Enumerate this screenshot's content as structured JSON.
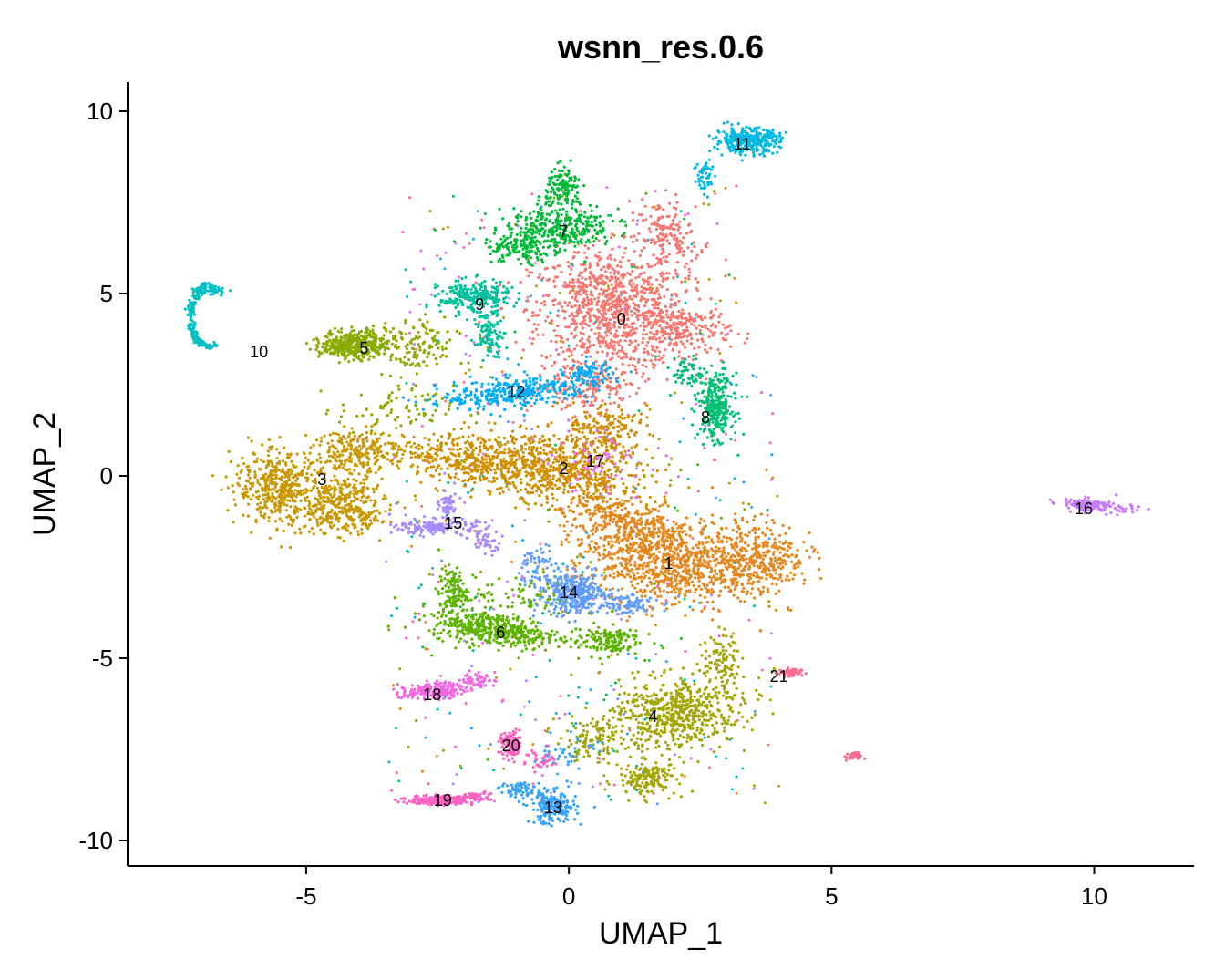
{
  "chart_data": {
    "type": "scatter",
    "title": "wsnn_res.0.6",
    "xlabel": "UMAP_1",
    "ylabel": "UMAP_2",
    "xlim": [
      -8.4,
      11.9
    ],
    "ylim": [
      -10.7,
      10.8
    ],
    "xticks": [
      -5,
      0,
      5,
      10
    ],
    "yticks": [
      -10,
      -5,
      0,
      5,
      10
    ],
    "xtick_labels": [
      "-5",
      "0",
      "5",
      "10"
    ],
    "ytick_labels": [
      "-10",
      "-5",
      "0",
      "5",
      "10"
    ],
    "grid": false,
    "legend": "none",
    "clusters": [
      {
        "name": "0",
        "color": "#F8766D",
        "label_pos": [
          1.0,
          4.3
        ],
        "blobs": [
          [
            0.8,
            4.6,
            1.3,
            1.5,
            0.1,
            900
          ],
          [
            1.9,
            6.6,
            0.5,
            0.9,
            0.3,
            150
          ],
          [
            2.2,
            4.0,
            0.8,
            0.6,
            0,
            200
          ],
          [
            0.4,
            2.5,
            0.9,
            0.7,
            0.2,
            200
          ]
        ]
      },
      {
        "name": "1",
        "color": "#E7861B",
        "label_pos": [
          1.9,
          -2.4
        ],
        "blobs": [
          [
            1.8,
            -2.3,
            1.5,
            1.1,
            -0.3,
            900
          ],
          [
            3.6,
            -2.2,
            0.8,
            0.9,
            0.2,
            350
          ],
          [
            1.0,
            -1.3,
            1.0,
            0.6,
            -0.5,
            250
          ]
        ]
      },
      {
        "name": "2",
        "color": "#D08F00",
        "label_pos": [
          -0.1,
          0.2
        ],
        "blobs": [
          [
            -0.3,
            0.2,
            1.6,
            0.8,
            -0.3,
            700
          ],
          [
            -1.8,
            0.4,
            1.2,
            0.6,
            -0.2,
            300
          ],
          [
            0.6,
            1.2,
            0.8,
            0.6,
            0.3,
            200
          ]
        ]
      },
      {
        "name": "3",
        "color": "#C99800",
        "label_pos": [
          -4.7,
          -0.1
        ],
        "blobs": [
          [
            -5.5,
            -0.3,
            0.75,
            0.9,
            0.1,
            450
          ],
          [
            -4.3,
            -0.7,
            0.7,
            0.8,
            0,
            300
          ],
          [
            -3.9,
            0.7,
            0.9,
            0.5,
            0,
            250
          ],
          [
            -4.2,
            -1.2,
            1.0,
            0.3,
            0,
            100
          ]
        ]
      },
      {
        "name": "4",
        "color": "#A3A500",
        "label_pos": [
          1.6,
          -6.6
        ],
        "blobs": [
          [
            2.0,
            -6.5,
            1.2,
            0.9,
            0.3,
            600
          ],
          [
            1.5,
            -8.3,
            0.5,
            0.4,
            0,
            150
          ],
          [
            0.4,
            -7.3,
            0.6,
            0.5,
            0,
            100
          ],
          [
            2.9,
            -5.0,
            0.3,
            0.6,
            0,
            80
          ]
        ]
      },
      {
        "name": "5",
        "color": "#8AAB00",
        "label_pos": [
          -3.9,
          3.5
        ],
        "blobs": [
          [
            -4.1,
            3.6,
            0.55,
            0.35,
            0,
            400
          ],
          [
            -3.0,
            3.5,
            0.8,
            0.7,
            0,
            150
          ],
          [
            -3.3,
            1.8,
            1.0,
            0.6,
            0,
            80
          ]
        ]
      },
      {
        "name": "6",
        "color": "#5EB300",
        "label_pos": [
          -1.3,
          -4.3
        ],
        "blobs": [
          [
            -1.4,
            -4.2,
            1.1,
            0.4,
            -0.2,
            450
          ],
          [
            -2.2,
            -3.2,
            0.25,
            0.6,
            0,
            120
          ],
          [
            0.7,
            -4.5,
            0.6,
            0.4,
            0,
            150
          ],
          [
            -0.8,
            -3.3,
            0.9,
            0.5,
            0,
            80
          ]
        ]
      },
      {
        "name": "7",
        "color": "#00BA38",
        "label_pos": [
          -0.1,
          6.7
        ],
        "blobs": [
          [
            -0.2,
            6.8,
            0.9,
            0.6,
            0.2,
            350
          ],
          [
            -0.1,
            7.9,
            0.3,
            0.5,
            0,
            120
          ],
          [
            -1.0,
            6.2,
            0.6,
            0.4,
            0,
            120
          ]
        ]
      },
      {
        "name": "8",
        "color": "#00BF74",
        "label_pos": [
          2.6,
          1.6
        ],
        "blobs": [
          [
            2.8,
            1.9,
            0.3,
            0.8,
            0,
            300
          ],
          [
            2.3,
            2.8,
            0.3,
            0.4,
            0,
            60
          ]
        ]
      },
      {
        "name": "9",
        "color": "#00C19C",
        "label_pos": [
          -1.7,
          4.7
        ],
        "blobs": [
          [
            -1.8,
            4.9,
            0.6,
            0.4,
            0,
            250
          ],
          [
            -1.5,
            3.9,
            0.25,
            0.5,
            0,
            100
          ]
        ]
      },
      {
        "name": "10",
        "color": "#00BFC4",
        "label_pos": [
          -5.9,
          3.4
        ],
        "arc": [
          -7.2,
          4.4,
          0.3,
          0.6,
          0,
          200
        ]
      },
      {
        "name": "11",
        "color": "#00B9E3",
        "label_pos": [
          3.3,
          9.1
        ],
        "blobs": [
          [
            3.4,
            9.2,
            0.55,
            0.3,
            0,
            350
          ],
          [
            2.6,
            8.2,
            0.2,
            0.5,
            0,
            50
          ]
        ]
      },
      {
        "name": "12",
        "color": "#00ADFA",
        "label_pos": [
          -1.0,
          2.3
        ],
        "blobs": [
          [
            -1.0,
            2.3,
            1.3,
            0.35,
            0.15,
            350
          ],
          [
            0.4,
            2.8,
            0.4,
            0.3,
            0,
            80
          ]
        ]
      },
      {
        "name": "13",
        "color": "#35A2FF",
        "label_pos": [
          -0.3,
          -9.1
        ],
        "blobs": [
          [
            -0.3,
            -9.1,
            0.4,
            0.4,
            0,
            200
          ],
          [
            -0.9,
            -8.6,
            0.4,
            0.2,
            0,
            60
          ],
          [
            0.0,
            -7.5,
            0.6,
            0.5,
            0,
            40
          ]
        ]
      },
      {
        "name": "14",
        "color": "#619CFF",
        "label_pos": [
          0.0,
          -3.2
        ],
        "blobs": [
          [
            0.1,
            -3.2,
            0.5,
            0.5,
            0,
            350
          ],
          [
            1.0,
            -3.5,
            0.6,
            0.3,
            0,
            100
          ],
          [
            -0.6,
            -2.5,
            0.3,
            0.6,
            0,
            60
          ]
        ]
      },
      {
        "name": "15",
        "color": "#A58AFF",
        "label_pos": [
          -2.2,
          -1.3
        ],
        "blobs": [
          [
            -2.5,
            -1.4,
            0.7,
            0.2,
            0,
            150
          ],
          [
            -2.3,
            -0.8,
            0.15,
            0.4,
            0,
            50
          ],
          [
            -1.6,
            -1.8,
            0.3,
            0.3,
            0,
            40
          ]
        ]
      },
      {
        "name": "16",
        "color": "#C77CFF",
        "label_pos": [
          9.8,
          -0.9
        ],
        "blobs": [
          [
            9.9,
            -0.8,
            0.45,
            0.15,
            -0.15,
            150
          ],
          [
            10.6,
            -0.9,
            0.3,
            0.1,
            0,
            20
          ]
        ]
      },
      {
        "name": "17",
        "color": "#E76BF3",
        "label_pos": [
          0.5,
          0.4
        ],
        "blobs": [
          [
            0.5,
            0.4,
            0.9,
            0.8,
            0,
            60
          ]
        ]
      },
      {
        "name": "18",
        "color": "#F564E3",
        "label_pos": [
          -2.6,
          -6.0
        ],
        "blobs": [
          [
            -2.6,
            -5.9,
            0.55,
            0.2,
            0.1,
            180
          ],
          [
            -1.7,
            -5.6,
            0.3,
            0.2,
            0,
            50
          ]
        ]
      },
      {
        "name": "19",
        "color": "#FF61C3",
        "label_pos": [
          -2.4,
          -8.9
        ],
        "blobs": [
          [
            -2.5,
            -8.9,
            0.5,
            0.12,
            0,
            200
          ],
          [
            -1.8,
            -8.8,
            0.3,
            0.12,
            0,
            50
          ]
        ]
      },
      {
        "name": "20",
        "color": "#FF62BC",
        "label_pos": [
          -1.1,
          -7.4
        ],
        "blobs": [
          [
            -1.1,
            -7.4,
            0.2,
            0.35,
            0,
            100
          ],
          [
            -0.5,
            -7.8,
            0.3,
            0.3,
            0,
            30
          ]
        ]
      },
      {
        "name": "21",
        "color": "#FF6C90",
        "label_pos": [
          4.0,
          -5.5
        ],
        "blobs": [
          [
            4.2,
            -5.4,
            0.2,
            0.12,
            0,
            60
          ],
          [
            5.4,
            -7.7,
            0.15,
            0.1,
            0,
            30
          ]
        ]
      }
    ]
  }
}
